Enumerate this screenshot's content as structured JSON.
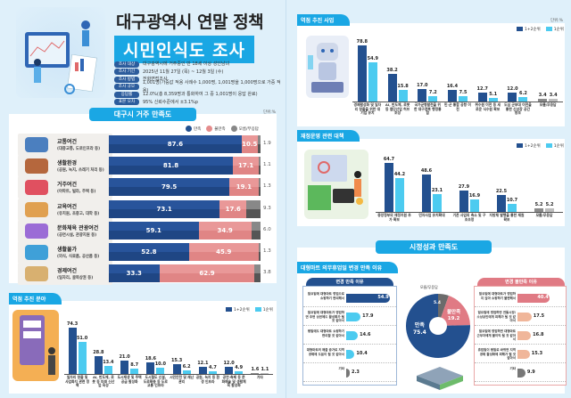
{
  "header": {
    "title_line1": "대구광역시 연말 정책",
    "title_line2": "시민인식도 조사",
    "info": [
      {
        "key": "조사 대상",
        "value": "대구광역시에 거주중인 만 18세 이상 성인남녀"
      },
      {
        "key": "조사 기간",
        "value": "2025년 11월 27일 (목) ~ 12월 3일 (수)"
      },
      {
        "key": "조사 방법",
        "value": "전화면접조사"
      },
      {
        "key": "조사 규모",
        "value": "1,001명(가중값 적용 사례수 1,000명, 1,001명을 1,000명으로 가중 적용)"
      },
      {
        "key": "응답률",
        "value": "12.0%(총 8,359명과 통화하여 그 중 1,001명이 응답 완료)"
      },
      {
        "key": "표본 오차",
        "value": "95% 신뢰수준에서 ±3.1%p"
      }
    ]
  },
  "satisfaction": {
    "title": "대구시 거주 만족도",
    "unit": "단위:%",
    "legend": [
      "만족",
      "불만족",
      "모름/무응답"
    ],
    "colors": {
      "satisfied": "#23508f",
      "dissatisfied": "#e58c8c",
      "unknown": "#6b6b6b"
    },
    "rows": [
      {
        "name": "교통여건",
        "sub": "(대중교통, 도로인프라 등)",
        "satisfied": 87.6,
        "dissatisfied": 10.5,
        "unknown": 1.9,
        "icon": "bus-icon"
      },
      {
        "name": "생활환경",
        "sub": "(공원, 녹지, 쓰레기 처리 등)",
        "satisfied": 81.8,
        "dissatisfied": 17.1,
        "unknown": 1.1,
        "icon": "park-icon"
      },
      {
        "name": "거주여건",
        "sub": "(아파트, 빌라, 주택 등)",
        "satisfied": 79.5,
        "dissatisfied": 19.1,
        "unknown": 1.3,
        "icon": "house-icon"
      },
      {
        "name": "교육여건",
        "sub": "(유치원, 초중고, 대학 등)",
        "satisfied": 73.1,
        "dissatisfied": 17.6,
        "unknown": 9.3,
        "icon": "school-icon"
      },
      {
        "name": "문화체육 관광여건",
        "sub": "(공연시설, 관광지원 등)",
        "satisfied": 59.1,
        "dissatisfied": 34.9,
        "unknown": 6.0,
        "icon": "culture-icon"
      },
      {
        "name": "생활물가",
        "sub": "(외식, 식료품, 공산품 등)",
        "satisfied": 52.8,
        "dissatisfied": 45.9,
        "unknown": 1.3,
        "icon": "basket-icon"
      },
      {
        "name": "경제여건",
        "sub": "(일자리, 골목상권 등)",
        "satisfied": 33.3,
        "dissatisfied": 62.9,
        "unknown": 3.8,
        "icon": "economy-icon"
      }
    ]
  },
  "chart_data": [
    {
      "type": "bar",
      "title": "역점 추진 분야",
      "legend": [
        "1+2순위",
        "1순위"
      ],
      "categories": [
        "일자리 창출 및 사업화지 관련 정책",
        "AI, 반도체, 로봇 등 미래 신산업 육성",
        "도시재생 및 주택공급 활성화",
        "도시철도 신설, 도로확충 등 도로 교통 인프라",
        "시민안전 및 재난관리",
        "공원, 녹지 등 환경 인프라",
        "공연·축제 등 문화예술 및 생활체육 활성화",
        "기타"
      ],
      "series": [
        {
          "name": "1+2순위",
          "values": [
            74.3,
            28.8,
            21.0,
            18.6,
            15.3,
            12.1,
            12.0,
            1.6
          ]
        },
        {
          "name": "1순위",
          "values": [
            51.0,
            13.4,
            8.7,
            10.0,
            6.2,
            4.7,
            4.9,
            1.1
          ]
        }
      ],
      "ylim": [
        0,
        80
      ]
    },
    {
      "type": "bar",
      "title": "역점 추진 사업",
      "unit": "단위:%",
      "legend": [
        "1+2순위",
        "1순위"
      ],
      "categories": [
        "경제활성화 및 일자리 창출을 위한 대기업 유치",
        "AI, 반도체, 로봇 등 첨단산업 허브 조성",
        "국가균형발전을 위한 대구경북 행정통합",
        "민·군 통합 공항 이전",
        "취수원 이전 등 새로운 식수원 확보",
        "도심 군부대 이전을 통한 신성장 공간 창조",
        "모름/무응답"
      ],
      "series": [
        {
          "name": "1+2순위",
          "values": [
            78.8,
            38.2,
            17.0,
            16.4,
            12.7,
            12.0,
            3.4
          ]
        },
        {
          "name": "1순위",
          "values": [
            54.9,
            15.8,
            7.2,
            7.5,
            5.1,
            6.2,
            3.4
          ]
        }
      ],
      "ylim": [
        0,
        85
      ]
    },
    {
      "type": "bar",
      "title": "재정운영 관련 대책",
      "legend": [
        "1+2순위",
        "1순위"
      ],
      "categories": [
        "중앙정부의 재정지원 추가 확보",
        "민자사업 유치확대",
        "기존 사업의 축소 및 구조조정",
        "지방채 발행을 통한 재원확보",
        "모름/무응답"
      ],
      "series": [
        {
          "name": "1+2순위",
          "values": [
            64.7,
            48.6,
            27.9,
            22.5,
            5.2
          ]
        },
        {
          "name": "1순위",
          "values": [
            44.2,
            23.1,
            16.9,
            10.7,
            5.2
          ]
        }
      ],
      "ylim": [
        0,
        70
      ]
    },
    {
      "type": "pie",
      "title": "대형마트 의무휴업일 변경 만족 이유",
      "labels": [
        "만족",
        "불만족",
        "모름/무응답"
      ],
      "values": [
        75.4,
        19.2,
        5.4
      ],
      "colors": [
        "#23508f",
        "#e07a84",
        "#6b6b6b"
      ]
    }
  ],
  "performance": {
    "title": "시정성과 만족도",
    "section": "대형마트 의무휴업일 변경 만족 이유",
    "pie_labels": {
      "satisfied": "만족",
      "dissatisfied": "불만족",
      "unknown": "모름/무응답"
    },
    "satisfied_reasons": {
      "title": "변경 만족 이유",
      "items": [
        {
          "text": "일요일에 대형마트 영업으로 쇼핑하기 편리해서",
          "value": 54.9
        },
        {
          "text": "일요일에 대형마트가 영업하면 주변 상권에도 활성화가 될 것 같아서",
          "value": 17.9
        },
        {
          "text": "평일에도 대형마트 쇼핑하기 편리할 것 같아서",
          "value": 14.6
        },
        {
          "text": "대형마트의 매출 증가로 지역경제에 도움이 될 것 같아서",
          "value": 10.4
        },
        {
          "text": "기타",
          "value": 2.3
        }
      ]
    },
    "dissatisfied_reasons": {
      "title": "변경 불만족 이유",
      "items": [
        {
          "text": "일요일에 대형마트가 영업하지 않아 쇼핑하기 불편해서",
          "value": 40.4
        },
        {
          "text": "일요일에 영업하면 전통시장/소상공인에게 피해가 될 것 같아서",
          "value": 17.5
        },
        {
          "text": "일요일에 영업하면 대형마트 근무자에게 불이익 될 것 같아서",
          "value": 16.8
        },
        {
          "text": "휴업일이 평일로 바뀌면 지역경제 활성화에 피해가 될 것 같아서",
          "value": 15.3
        },
        {
          "text": "기타",
          "value": 9.9
        }
      ]
    }
  }
}
